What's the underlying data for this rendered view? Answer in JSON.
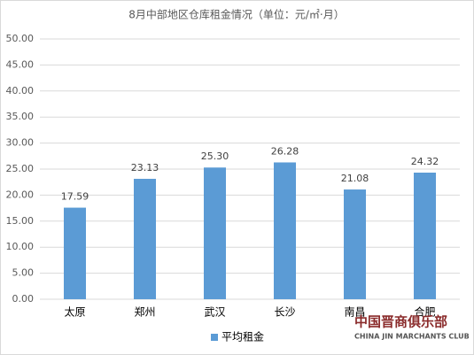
{
  "chart_data": {
    "type": "bar",
    "title": "8月中部地区仓库租金情况（单位：元/㎡·月）",
    "categories": [
      "太原",
      "郑州",
      "武汉",
      "长沙",
      "南昌",
      "合肥"
    ],
    "series": [
      {
        "name": "平均租金",
        "color": "#5b9bd5",
        "values": [
          17.59,
          23.13,
          25.3,
          26.28,
          21.08,
          24.32
        ],
        "value_labels": [
          "17.59",
          "23.13",
          "25.30",
          "26.28",
          "21.08",
          "24.32"
        ]
      }
    ],
    "ylim": [
      0,
      50
    ],
    "yticks": [
      {
        "value": 0,
        "label": "0.00"
      },
      {
        "value": 5,
        "label": "5.00"
      },
      {
        "value": 10,
        "label": "10.00"
      },
      {
        "value": 15,
        "label": "15.00"
      },
      {
        "value": 20,
        "label": "20.00"
      },
      {
        "value": 25,
        "label": "25.00"
      },
      {
        "value": 30,
        "label": "30.00"
      },
      {
        "value": 35,
        "label": "35.00"
      },
      {
        "value": 40,
        "label": "40.00"
      },
      {
        "value": 45,
        "label": "45.00"
      },
      {
        "value": 50,
        "label": "50.00"
      }
    ],
    "grid": true,
    "legend": "bottom",
    "watermark": {
      "title": "中国晋商俱乐部",
      "subtitle": "CHINA JIN MARCHANTS CLUB"
    }
  }
}
